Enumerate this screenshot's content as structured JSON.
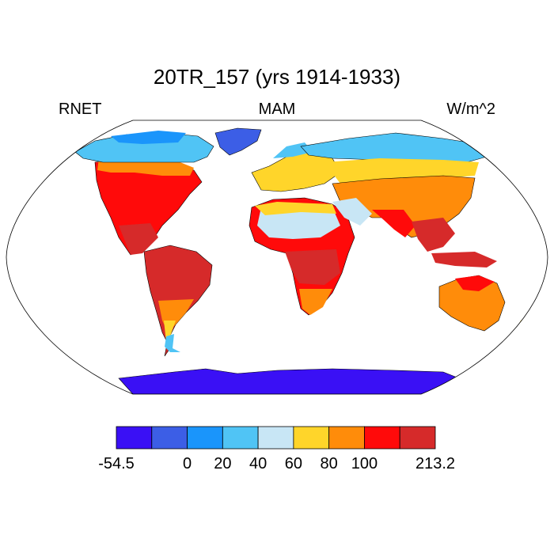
{
  "title": "20TR_157 (yrs 1914-1933)",
  "left_label": "RNET",
  "center_label": "MAM",
  "right_label": "W/m^2",
  "colorbar": {
    "colors": [
      "#3a10f5",
      "#3c5ee6",
      "#1a95fb",
      "#50c4f5",
      "#c8e6f5",
      "#ffd52a",
      "#ff8c0a",
      "#ff0a0a",
      "#d62a2a"
    ],
    "tick_labels": [
      "-54.5",
      "0",
      "20",
      "40",
      "60",
      "80",
      "100",
      "213.2"
    ],
    "tick_boundaries": [
      0,
      2,
      3,
      4,
      5,
      6,
      7,
      9
    ]
  },
  "map": {
    "projection": "Robinson",
    "land_outline_color": "#000000"
  }
}
